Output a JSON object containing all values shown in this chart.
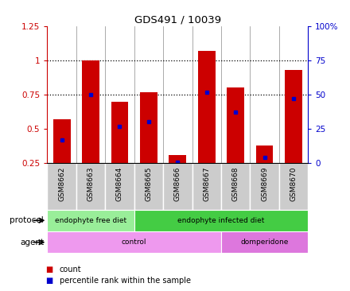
{
  "title": "GDS491 / 10039",
  "samples": [
    "GSM8662",
    "GSM8663",
    "GSM8664",
    "GSM8665",
    "GSM8666",
    "GSM8667",
    "GSM8668",
    "GSM8669",
    "GSM8670"
  ],
  "counts": [
    0.57,
    1.0,
    0.7,
    0.77,
    0.31,
    1.07,
    0.8,
    0.38,
    0.93
  ],
  "percentiles": [
    0.42,
    0.75,
    0.52,
    0.55,
    0.255,
    0.77,
    0.62,
    0.29,
    0.72
  ],
  "bar_bottom": 0.25,
  "ylim": [
    0.25,
    1.25
  ],
  "yticks_left": [
    0.25,
    0.5,
    0.75,
    1.0,
    1.25
  ],
  "ytick_labels_left": [
    "0.25",
    "0.5",
    "0.75",
    "1",
    "1.25"
  ],
  "y_right_ticks": [
    0,
    25,
    50,
    75,
    100
  ],
  "y_right_labels": [
    "0",
    "25",
    "50",
    "75",
    "100%"
  ],
  "bar_color": "#cc0000",
  "dot_color": "#0000cc",
  "gridline_y": [
    0.75,
    1.0
  ],
  "protocol_groups": [
    {
      "label": "endophyte free diet",
      "start": 0,
      "end": 3,
      "color": "#99ee99"
    },
    {
      "label": "endophyte infected diet",
      "start": 3,
      "end": 9,
      "color": "#44cc44"
    }
  ],
  "agent_groups": [
    {
      "label": "control",
      "start": 0,
      "end": 6,
      "color": "#ee99ee"
    },
    {
      "label": "domperidone",
      "start": 6,
      "end": 9,
      "color": "#dd77dd"
    }
  ],
  "protocol_label": "protocol",
  "agent_label": "agent",
  "legend_count_color": "#cc0000",
  "legend_dot_color": "#0000cc",
  "legend_count_text": "count",
  "legend_dot_text": "percentile rank within the sample",
  "bar_width": 0.6,
  "tick_bg_color": "#cccccc",
  "separator_color": "#888888"
}
